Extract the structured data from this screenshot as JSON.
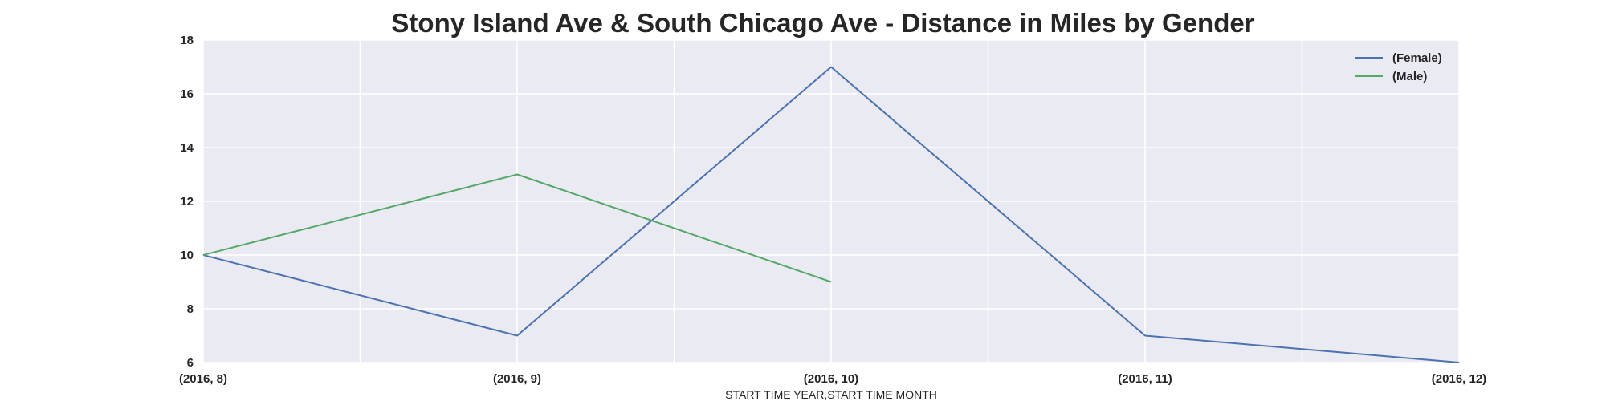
{
  "chart_data": {
    "type": "line",
    "title": "Stony Island Ave & South Chicago Ave - Distance in Miles by Gender",
    "xlabel": "START TIME YEAR,START TIME MONTH",
    "ylabel": "",
    "categories": [
      "(2016, 8)",
      "(2016, 9)",
      "(2016, 10)",
      "(2016, 11)",
      "(2016, 12)"
    ],
    "ylim": [
      6,
      18
    ],
    "yticks": [
      6,
      8,
      10,
      12,
      14,
      16,
      18
    ],
    "grid": true,
    "legend_position": "top-right",
    "series": [
      {
        "name": "(Female)",
        "color": "#4c72b0",
        "values": [
          10,
          7,
          17,
          7,
          6
        ]
      },
      {
        "name": "(Male)",
        "color": "#55a868",
        "values": [
          10,
          13,
          9,
          null,
          null
        ]
      }
    ]
  }
}
